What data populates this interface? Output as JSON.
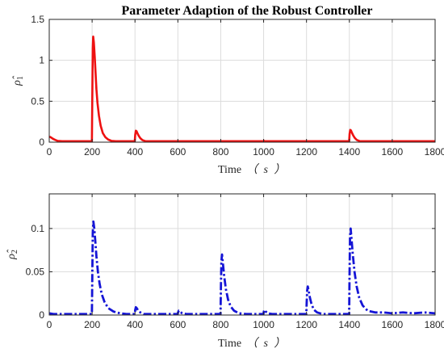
{
  "title": "Parameter Adaption of the Robust Controller",
  "chart_data": [
    {
      "type": "line",
      "ylabel_symbol": "ρ̂",
      "ylabel_subscript": "1",
      "xlabel": "Time",
      "xlabel_unit": "（ s ）",
      "xlim": [
        0,
        1800
      ],
      "ylim": [
        0,
        1.5
      ],
      "xticks": [
        0,
        200,
        400,
        600,
        800,
        1000,
        1200,
        1400,
        1600,
        1800
      ],
      "xtick_labels": [
        "0",
        "200",
        "400",
        "600",
        "800",
        "1000",
        "1200",
        "1400",
        "1600",
        "1800"
      ],
      "yticks": [
        0,
        0.5,
        1,
        1.5
      ],
      "ytick_labels": [
        "0",
        "0.5",
        "1",
        "1.5"
      ],
      "grid": true,
      "series": [
        {
          "color": "#ee1111",
          "line_style": "solid",
          "x": [
            0,
            3,
            8,
            15,
            22,
            30,
            40,
            60,
            100,
            150,
            199,
            201,
            203,
            205,
            208,
            212,
            216,
            220,
            225,
            232,
            240,
            250,
            262,
            275,
            290,
            310,
            340,
            380,
            399,
            401,
            404,
            407,
            412,
            418,
            425,
            435,
            450,
            480,
            550,
            700,
            900,
            999,
            1001,
            1004,
            1010,
            1020,
            1050,
            1100,
            1200,
            1300,
            1399,
            1401,
            1404,
            1407,
            1412,
            1418,
            1425,
            1435,
            1450,
            1480,
            1550,
            1700,
            1800
          ],
          "y": [
            0.06,
            0.065,
            0.058,
            0.045,
            0.035,
            0.025,
            0.015,
            0.006,
            0.002,
            0.001,
            0.001,
            0.6,
            1.15,
            1.29,
            1.22,
            1.05,
            0.85,
            0.65,
            0.48,
            0.32,
            0.2,
            0.11,
            0.06,
            0.032,
            0.016,
            0.007,
            0.003,
            0.001,
            0.001,
            0.09,
            0.14,
            0.135,
            0.105,
            0.075,
            0.048,
            0.025,
            0.01,
            0.003,
            0.001,
            0.001,
            0.001,
            0.001,
            0.018,
            0.012,
            0.005,
            0.002,
            0.001,
            0.001,
            0.001,
            0.001,
            0.001,
            0.1,
            0.15,
            0.145,
            0.115,
            0.082,
            0.052,
            0.026,
            0.01,
            0.003,
            0.001,
            0.001,
            0.001
          ]
        }
      ]
    },
    {
      "type": "line",
      "ylabel_symbol": "ρ̂",
      "ylabel_subscript": "2",
      "xlabel": "Time",
      "xlabel_unit": "（ s ）",
      "xlim": [
        0,
        1800
      ],
      "ylim": [
        0,
        0.14
      ],
      "xticks": [
        0,
        200,
        400,
        600,
        800,
        1000,
        1200,
        1400,
        1600,
        1800
      ],
      "xtick_labels": [
        "0",
        "200",
        "400",
        "600",
        "800",
        "1000",
        "1200",
        "1400",
        "1600",
        "1800"
      ],
      "yticks": [
        0,
        0.05,
        0.1
      ],
      "ytick_labels": [
        "0",
        "0.05",
        "0.1"
      ],
      "grid": true,
      "series": [
        {
          "color": "#1515d6",
          "line_style": "dashdot",
          "x": [
            0,
            20,
            50,
            100,
            150,
            199,
            201,
            203,
            206,
            210,
            215,
            220,
            227,
            235,
            245,
            258,
            275,
            300,
            330,
            360,
            399,
            401,
            404,
            408,
            415,
            425,
            440,
            470,
            520,
            599,
            601,
            604,
            610,
            620,
            640,
            680,
            740,
            790,
            799,
            801,
            803,
            806,
            810,
            816,
            824,
            834,
            846,
            862,
            885,
            920,
            970,
            999,
            1001,
            1004,
            1010,
            1020,
            1040,
            1080,
            1150,
            1199,
            1201,
            1203,
            1206,
            1210,
            1216,
            1224,
            1235,
            1250,
            1275,
            1320,
            1370,
            1399,
            1401,
            1403,
            1406,
            1410,
            1416,
            1424,
            1434,
            1446,
            1462,
            1485,
            1520,
            1560,
            1600,
            1650,
            1700,
            1750,
            1800
          ],
          "y": [
            0.002,
            0.001,
            0.001,
            0.001,
            0.001,
            0.001,
            0.05,
            0.095,
            0.108,
            0.1,
            0.085,
            0.068,
            0.05,
            0.036,
            0.024,
            0.015,
            0.008,
            0.004,
            0.002,
            0.001,
            0.001,
            0.006,
            0.009,
            0.008,
            0.005,
            0.003,
            0.001,
            0.001,
            0.001,
            0.001,
            0.003,
            0.005,
            0.004,
            0.002,
            0.001,
            0.001,
            0.001,
            0.001,
            0.001,
            0.035,
            0.062,
            0.07,
            0.06,
            0.045,
            0.03,
            0.018,
            0.01,
            0.005,
            0.002,
            0.001,
            0.001,
            0.001,
            0.004,
            0.006,
            0.004,
            0.002,
            0.001,
            0.001,
            0.001,
            0.001,
            0.015,
            0.028,
            0.033,
            0.028,
            0.02,
            0.012,
            0.006,
            0.003,
            0.001,
            0.001,
            0.001,
            0.001,
            0.05,
            0.09,
            0.1,
            0.088,
            0.07,
            0.05,
            0.033,
            0.02,
            0.011,
            0.005,
            0.003,
            0.003,
            0.002,
            0.003,
            0.002,
            0.003,
            0.002
          ]
        }
      ]
    }
  ]
}
